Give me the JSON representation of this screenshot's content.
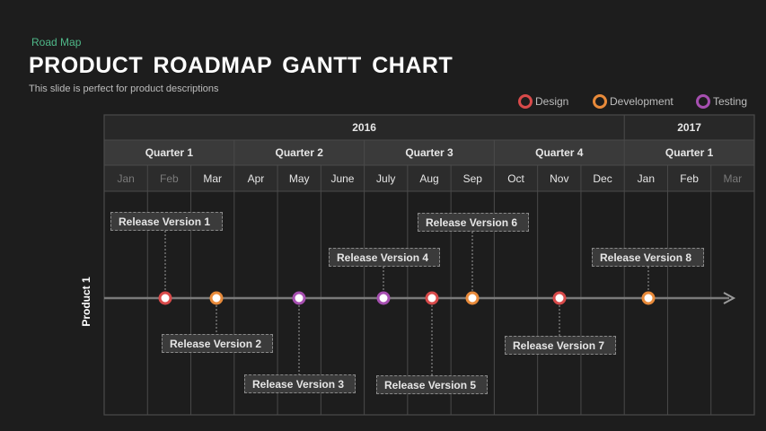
{
  "header": {
    "section": "Road Map",
    "title": "PRODUCT ROADMAP GANTT CHART",
    "subtitle": "This slide is perfect for product descriptions"
  },
  "legend": [
    {
      "label": "Design",
      "color": "#d84a4a"
    },
    {
      "label": "Development",
      "color": "#e88a3a"
    },
    {
      "label": "Testing",
      "color": "#a64fb0"
    }
  ],
  "timeline": {
    "years": [
      {
        "label": "2016"
      },
      {
        "label": "2017"
      }
    ],
    "quarters": [
      "Quarter 1",
      "Quarter 2",
      "Quarter 3",
      "Quarter 4",
      "Quarter 1"
    ],
    "months": [
      "Jan",
      "Feb",
      "Mar",
      "Apr",
      "May",
      "June",
      "July",
      "Aug",
      "Sep",
      "Oct",
      "Nov",
      "Dec",
      "Jan",
      "Feb",
      "Mar"
    ],
    "dimmed_months": [
      0,
      1,
      14
    ]
  },
  "row_label": "Product 1",
  "releases": [
    {
      "label": "Release Version  1",
      "type": "Design"
    },
    {
      "label": "Release Version  2",
      "type": "Development"
    },
    {
      "label": "Release Version  3",
      "type": "Testing"
    },
    {
      "label": "Release Version  4",
      "type": "Testing"
    },
    {
      "label": "Release Version  5",
      "type": "Design"
    },
    {
      "label": "Release Version  6",
      "type": "Development"
    },
    {
      "label": "Release Version  7",
      "type": "Design"
    },
    {
      "label": "Release Version  8",
      "type": "Development"
    }
  ]
}
